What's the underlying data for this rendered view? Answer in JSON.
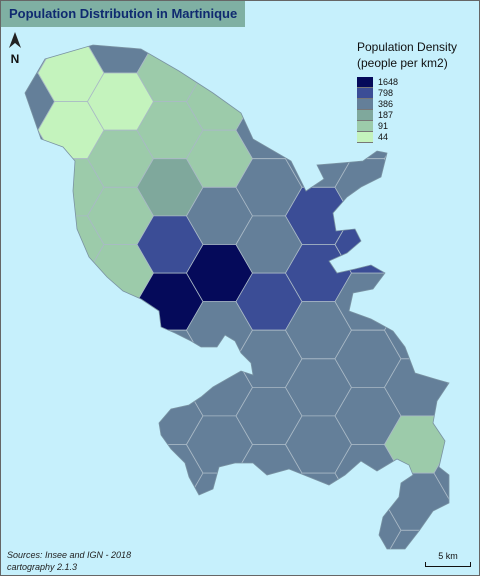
{
  "title": "Population Distribution in Martinique",
  "north_label": "N",
  "legend": {
    "title_line1": "Population Density",
    "title_line2": "(people per km2)",
    "levels": [
      {
        "value": "1648",
        "color": "#050a5a"
      },
      {
        "value": "798",
        "color": "#3b4d96"
      },
      {
        "value": "386",
        "color": "#647f99"
      },
      {
        "value": "187",
        "color": "#7fa89c"
      },
      {
        "value": "91",
        "color": "#9ccbaa"
      },
      {
        "value": "44",
        "color": "#c4f3bd"
      }
    ]
  },
  "sources_line1": "Sources: Insee and IGN - 2018",
  "sources_line2": "cartography 2.1.3",
  "scale_label": "5 km",
  "colors": {
    "sea": "#c6f0fc",
    "title_bg": "#7fb0a3",
    "title_text": "#0f2a70"
  }
}
